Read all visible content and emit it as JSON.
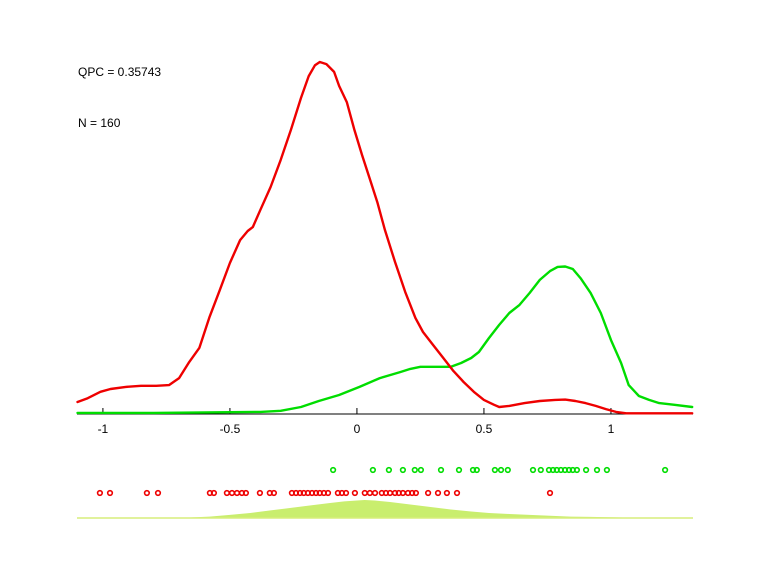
{
  "annotation": {
    "line1": "QPC = 0.35743",
    "line2": "N = 160"
  },
  "chart_data": {
    "type": "line",
    "title": "",
    "xlabel": "",
    "ylabel": "",
    "grid": false,
    "legend": null,
    "x_axis": {
      "range": [
        -1.102,
        1.323
      ],
      "ticks": [
        -1,
        -0.5,
        0,
        0.5,
        1
      ],
      "tick_labels": [
        "-1",
        "-0.5",
        "0",
        "0.5",
        "1"
      ]
    },
    "y_axis": {
      "visible": false,
      "range": [
        0,
        1.05
      ],
      "note": "unlabeled density axis, values normalized to red-curve peak = 1"
    },
    "series": [
      {
        "name": "red-class-density",
        "color": "#ee0000",
        "points": [
          [
            -1.1,
            0.034
          ],
          [
            -1.06,
            0.045
          ],
          [
            -1.01,
            0.063
          ],
          [
            -0.97,
            0.071
          ],
          [
            -0.91,
            0.077
          ],
          [
            -0.85,
            0.08
          ],
          [
            -0.79,
            0.08
          ],
          [
            -0.74,
            0.082
          ],
          [
            -0.7,
            0.102
          ],
          [
            -0.66,
            0.148
          ],
          [
            -0.62,
            0.188
          ],
          [
            -0.58,
            0.276
          ],
          [
            -0.54,
            0.352
          ],
          [
            -0.5,
            0.429
          ],
          [
            -0.46,
            0.494
          ],
          [
            -0.43,
            0.52
          ],
          [
            -0.41,
            0.531
          ],
          [
            -0.38,
            0.58
          ],
          [
            -0.34,
            0.645
          ],
          [
            -0.3,
            0.722
          ],
          [
            -0.26,
            0.807
          ],
          [
            -0.22,
            0.898
          ],
          [
            -0.19,
            0.96
          ],
          [
            -0.165,
            0.991
          ],
          [
            -0.146,
            1.0
          ],
          [
            -0.12,
            0.994
          ],
          [
            -0.09,
            0.972
          ],
          [
            -0.07,
            0.932
          ],
          [
            -0.04,
            0.886
          ],
          [
            -0.01,
            0.807
          ],
          [
            0.02,
            0.736
          ],
          [
            0.05,
            0.67
          ],
          [
            0.08,
            0.602
          ],
          [
            0.11,
            0.523
          ],
          [
            0.15,
            0.432
          ],
          [
            0.19,
            0.347
          ],
          [
            0.23,
            0.273
          ],
          [
            0.26,
            0.233
          ],
          [
            0.3,
            0.196
          ],
          [
            0.34,
            0.159
          ],
          [
            0.38,
            0.122
          ],
          [
            0.42,
            0.091
          ],
          [
            0.46,
            0.063
          ],
          [
            0.5,
            0.04
          ],
          [
            0.54,
            0.026
          ],
          [
            0.56,
            0.02
          ],
          [
            0.6,
            0.023
          ],
          [
            0.66,
            0.031
          ],
          [
            0.72,
            0.037
          ],
          [
            0.78,
            0.04
          ],
          [
            0.82,
            0.041
          ],
          [
            0.86,
            0.037
          ],
          [
            0.9,
            0.031
          ],
          [
            0.94,
            0.023
          ],
          [
            0.98,
            0.014
          ],
          [
            1.02,
            0.006
          ],
          [
            1.06,
            0.002
          ],
          [
            1.19,
            0.002
          ],
          [
            1.32,
            0.002
          ]
        ]
      },
      {
        "name": "green-class-density",
        "color": "#00dd00",
        "points": [
          [
            -1.1,
            0.003
          ],
          [
            -0.8,
            0.003
          ],
          [
            -0.5,
            0.005
          ],
          [
            -0.38,
            0.006
          ],
          [
            -0.3,
            0.009
          ],
          [
            -0.22,
            0.02
          ],
          [
            -0.15,
            0.037
          ],
          [
            -0.07,
            0.054
          ],
          [
            0.01,
            0.077
          ],
          [
            0.09,
            0.102
          ],
          [
            0.17,
            0.119
          ],
          [
            0.21,
            0.128
          ],
          [
            0.25,
            0.134
          ],
          [
            0.31,
            0.134
          ],
          [
            0.37,
            0.134
          ],
          [
            0.41,
            0.145
          ],
          [
            0.45,
            0.159
          ],
          [
            0.48,
            0.176
          ],
          [
            0.52,
            0.216
          ],
          [
            0.56,
            0.253
          ],
          [
            0.6,
            0.287
          ],
          [
            0.64,
            0.31
          ],
          [
            0.68,
            0.344
          ],
          [
            0.72,
            0.381
          ],
          [
            0.76,
            0.406
          ],
          [
            0.79,
            0.418
          ],
          [
            0.82,
            0.419
          ],
          [
            0.85,
            0.412
          ],
          [
            0.88,
            0.386
          ],
          [
            0.92,
            0.344
          ],
          [
            0.96,
            0.287
          ],
          [
            1.0,
            0.21
          ],
          [
            1.04,
            0.145
          ],
          [
            1.07,
            0.082
          ],
          [
            1.11,
            0.051
          ],
          [
            1.15,
            0.04
          ],
          [
            1.19,
            0.031
          ],
          [
            1.25,
            0.026
          ],
          [
            1.32,
            0.02
          ]
        ]
      }
    ],
    "rug": {
      "green": {
        "color": "#00dd00",
        "row": "upper",
        "x": [
          -0.094,
          0.063,
          0.126,
          0.181,
          0.228,
          0.252,
          0.331,
          0.402,
          0.457,
          0.472,
          0.543,
          0.567,
          0.594,
          0.693,
          0.724,
          0.756,
          0.772,
          0.787,
          0.803,
          0.819,
          0.835,
          0.85,
          0.866,
          0.902,
          0.945,
          0.984,
          1.213
        ]
      },
      "red": {
        "color": "#ee0000",
        "row": "lower",
        "x": [
          -1.012,
          -0.972,
          -0.827,
          -0.783,
          -0.579,
          -0.563,
          -0.512,
          -0.492,
          -0.472,
          -0.453,
          -0.437,
          -0.382,
          -0.343,
          -0.327,
          -0.256,
          -0.24,
          -0.224,
          -0.209,
          -0.193,
          -0.177,
          -0.161,
          -0.146,
          -0.13,
          -0.114,
          -0.075,
          -0.059,
          -0.043,
          -0.008,
          0.031,
          0.051,
          0.071,
          0.098,
          0.114,
          0.13,
          0.15,
          0.165,
          0.181,
          0.201,
          0.217,
          0.232,
          0.28,
          0.319,
          0.354,
          0.394,
          0.76
        ]
      }
    },
    "combined_density": {
      "fill_color": "#c9ee6e",
      "line_color": "#d7ee7c",
      "note": "values normalized to its own peak = 1",
      "points": [
        [
          -0.66,
          0.03
        ],
        [
          -0.58,
          0.08
        ],
        [
          -0.5,
          0.17
        ],
        [
          -0.42,
          0.28
        ],
        [
          -0.34,
          0.42
        ],
        [
          -0.26,
          0.56
        ],
        [
          -0.19,
          0.69
        ],
        [
          -0.11,
          0.83
        ],
        [
          -0.05,
          0.92
        ],
        [
          0.0,
          0.97
        ],
        [
          0.03,
          1.0
        ],
        [
          0.07,
          0.97
        ],
        [
          0.13,
          0.89
        ],
        [
          0.21,
          0.75
        ],
        [
          0.29,
          0.61
        ],
        [
          0.37,
          0.47
        ],
        [
          0.45,
          0.36
        ],
        [
          0.52,
          0.28
        ],
        [
          0.6,
          0.22
        ],
        [
          0.68,
          0.17
        ],
        [
          0.76,
          0.12
        ],
        [
          0.84,
          0.08
        ],
        [
          0.92,
          0.06
        ],
        [
          1.0,
          0.04
        ],
        [
          1.07,
          0.02
        ],
        [
          1.15,
          0.01
        ],
        [
          1.23,
          0.0
        ]
      ]
    },
    "colors": {
      "axis": "#000000",
      "text": "#000000",
      "background": "#ffffff"
    }
  }
}
